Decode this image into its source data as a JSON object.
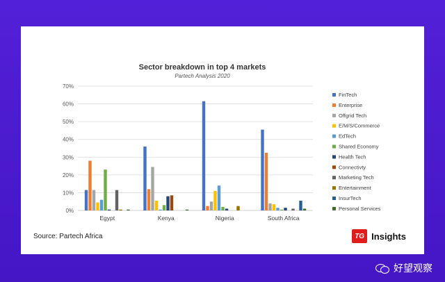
{
  "chart_data": {
    "type": "bar",
    "title": "Sector breakdown in top 4 markets",
    "subtitle": "Partech Analysis 2020",
    "categories": [
      "Egypt",
      "Kenya",
      "Nigeria",
      "South Africa"
    ],
    "ylim": [
      0,
      70
    ],
    "yticks": [
      0,
      10,
      20,
      30,
      40,
      50,
      60,
      70
    ],
    "ytick_labels": [
      "0%",
      "10%",
      "20%",
      "30%",
      "40%",
      "50%",
      "60%",
      "70%"
    ],
    "grid": true,
    "legend_position": "right",
    "series": [
      {
        "name": "FinTech",
        "color": "#4472c4",
        "values": [
          11.5,
          36,
          61.5,
          45.5
        ]
      },
      {
        "name": "Enterprise",
        "color": "#ed7d31",
        "values": [
          28,
          12,
          2.5,
          32.5
        ]
      },
      {
        "name": "Offgrid Tech",
        "color": "#a5a5a5",
        "values": [
          11.5,
          24.5,
          5,
          4
        ]
      },
      {
        "name": "E/M/S/Commerce",
        "color": "#ffc000",
        "values": [
          4.5,
          5.5,
          11,
          3.5
        ]
      },
      {
        "name": "EdTech",
        "color": "#5b9bd5",
        "values": [
          6,
          0.5,
          14,
          1.5
        ]
      },
      {
        "name": "Shared Economy",
        "color": "#70ad47",
        "values": [
          23,
          3,
          2,
          0.5
        ]
      },
      {
        "name": "Health Tech",
        "color": "#264478",
        "values": [
          0.5,
          8,
          1,
          1.5
        ]
      },
      {
        "name": "Connectivty",
        "color": "#9e480e",
        "values": [
          0,
          8.5,
          0,
          0
        ]
      },
      {
        "name": "Marketing Tech",
        "color": "#636363",
        "values": [
          11.5,
          0,
          0,
          1
        ]
      },
      {
        "name": "Entertainment",
        "color": "#997300",
        "values": [
          0.5,
          0,
          2.5,
          0
        ]
      },
      {
        "name": "InsurTech",
        "color": "#255e91",
        "values": [
          0,
          0,
          0,
          5.5
        ]
      },
      {
        "name": "Personal Services",
        "color": "#43682b",
        "values": [
          0.5,
          0.5,
          0,
          1
        ]
      }
    ]
  },
  "source_text": "Source: Partech Africa",
  "brand": {
    "mark": "TG",
    "text": "Insights"
  },
  "watermark": {
    "text": "好望观察",
    "icon": "wechat-icon"
  }
}
